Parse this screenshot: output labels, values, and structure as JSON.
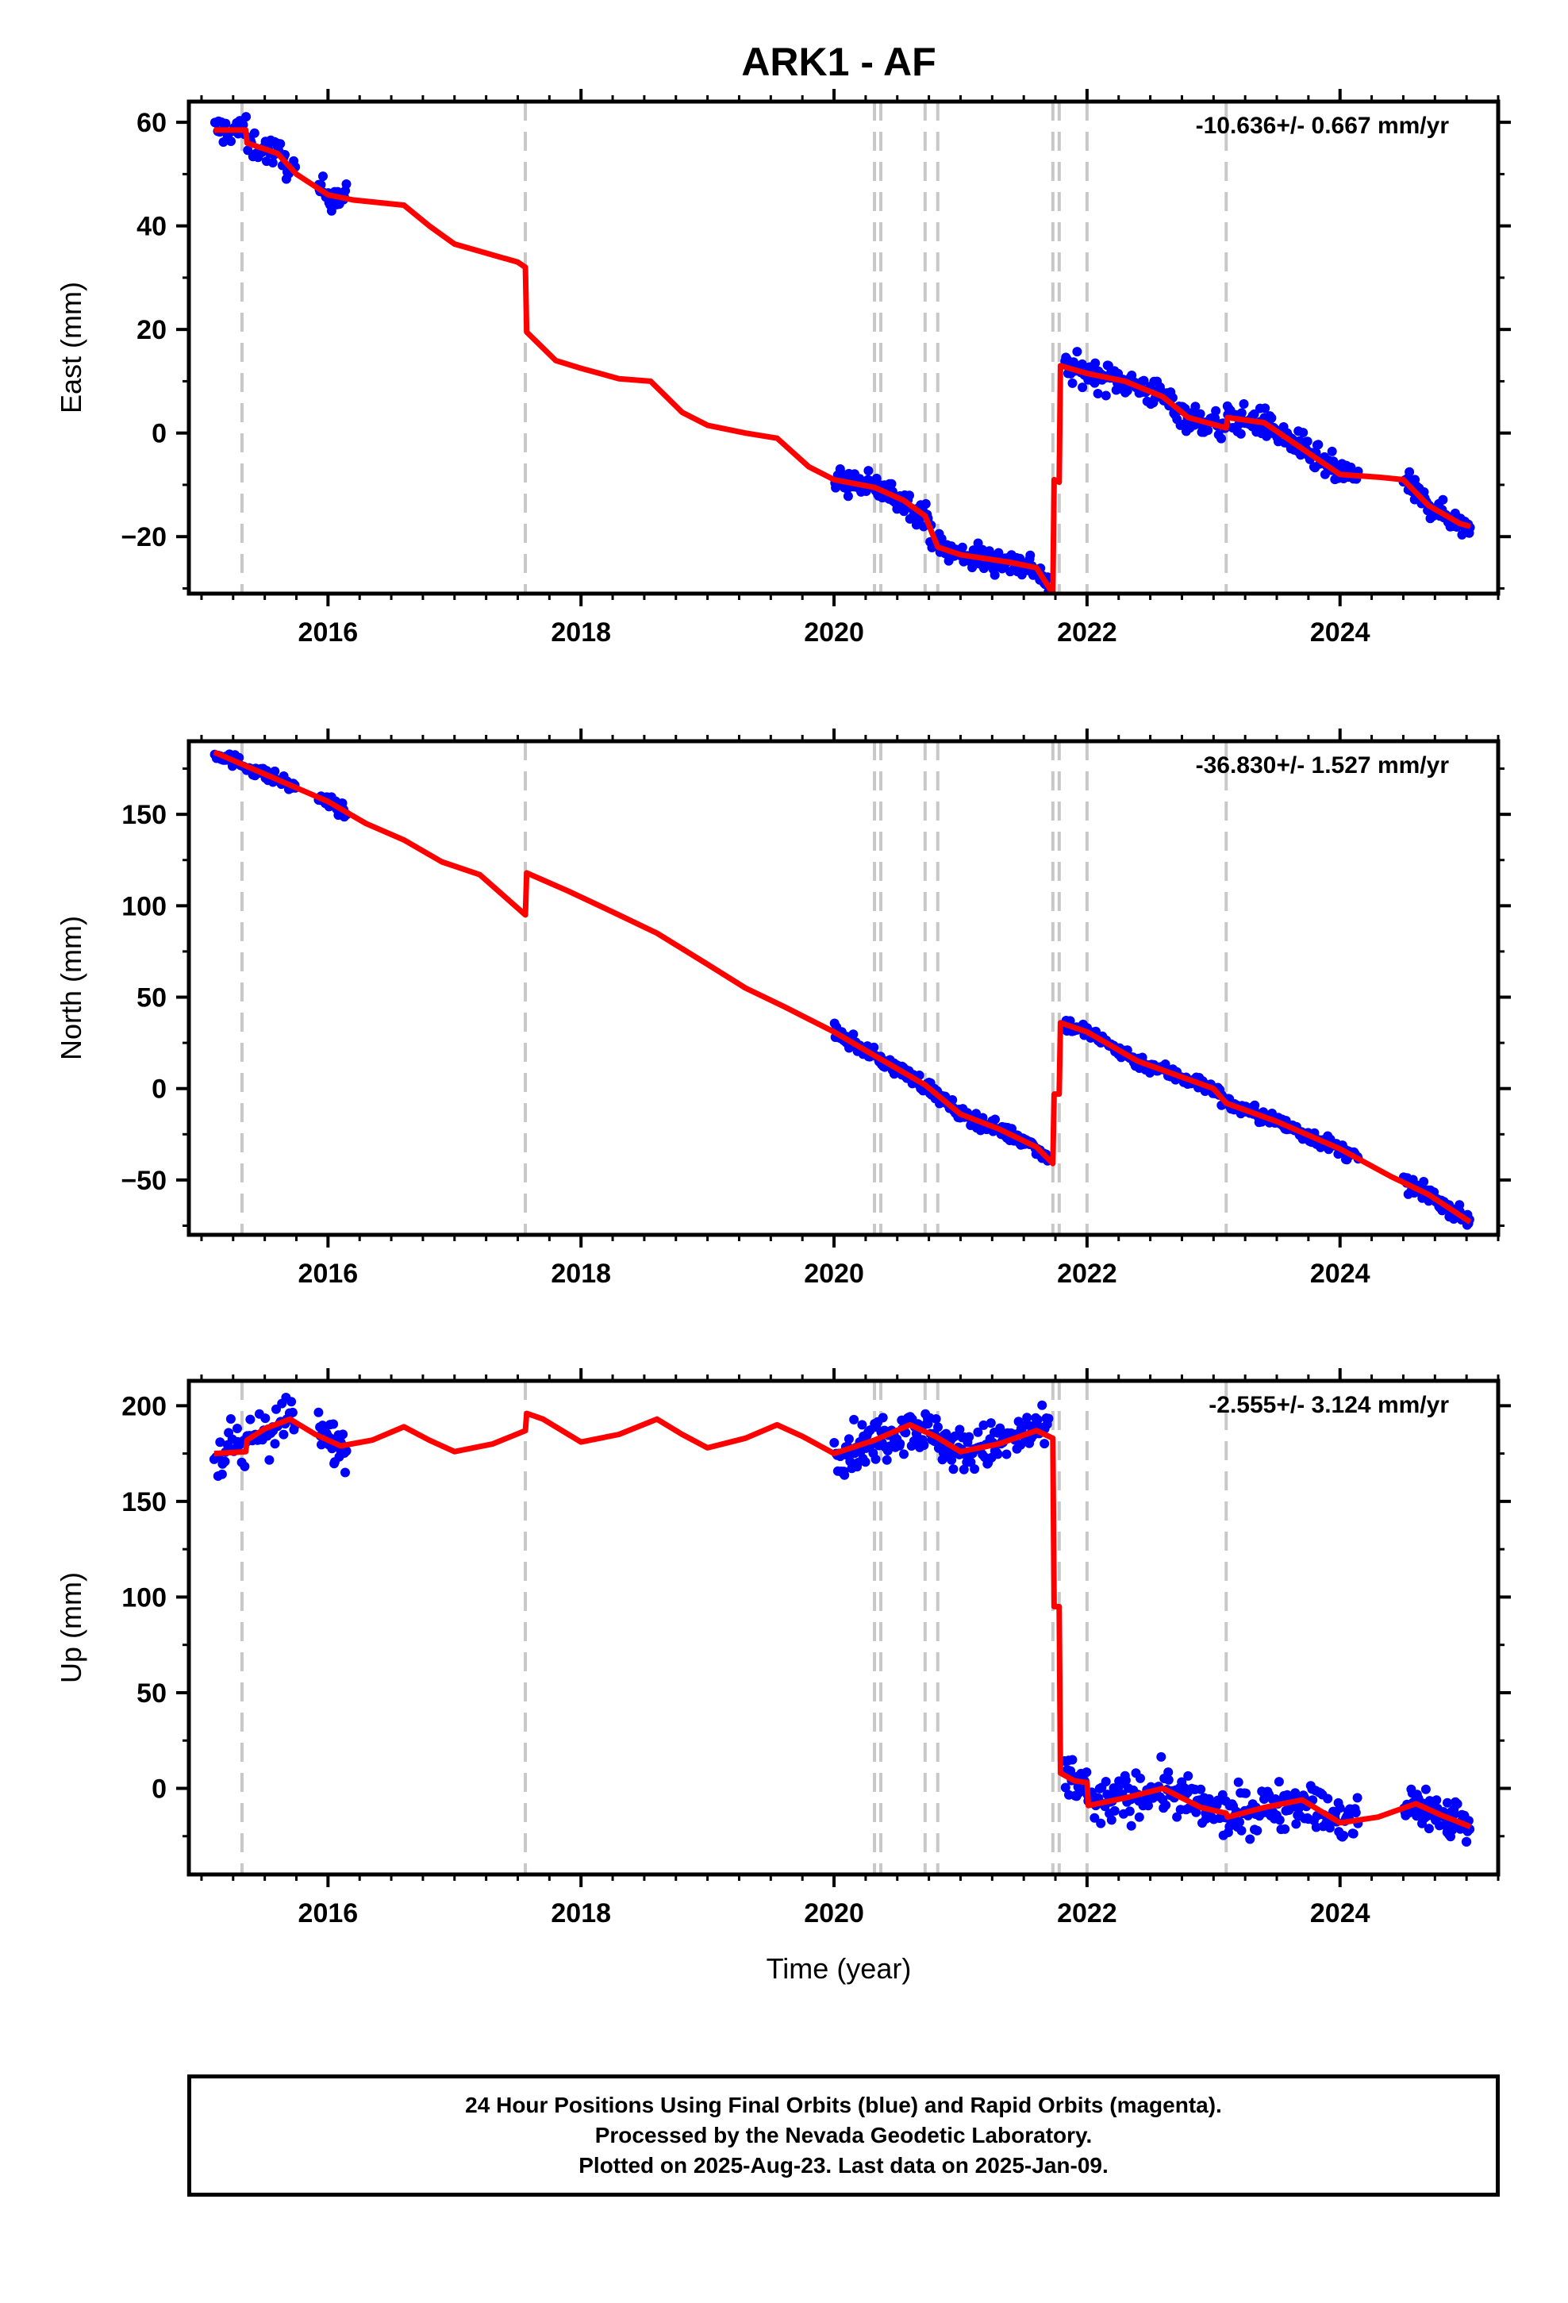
{
  "chart_data": {
    "type": "scatter",
    "title": "ARK1 - AF",
    "xlabel": "Time (year)",
    "xlim": [
      2014.9,
      2025.25
    ],
    "x_ticks": [
      2016,
      2018,
      2020,
      2022,
      2024
    ],
    "x_tick_labels": [
      "2016",
      "2018",
      "2020",
      "2022",
      "2024"
    ],
    "x_minor_step": 0.25,
    "grid": false,
    "marker_color": "#0000ff",
    "model_color": "#ff0000",
    "event_line_color": "#c8c8c8",
    "event_lines": [
      2015.32,
      2017.56,
      2020.32,
      2020.37,
      2020.72,
      2020.82,
      2021.73,
      2021.78,
      2022.0,
      2023.1
    ],
    "panels": [
      {
        "id": "east",
        "ylabel": "East (mm)",
        "ylim": [
          -31,
          64
        ],
        "y_ticks": [
          -20,
          0,
          20,
          40,
          60
        ],
        "y_tick_labels": [
          "−20",
          "0",
          "20",
          "40",
          "60"
        ],
        "rate": "-10.636+/- 0.667 mm/yr",
        "model": [
          [
            2015.1,
            58.5
          ],
          [
            2015.35,
            58.5
          ],
          [
            2015.36,
            56
          ],
          [
            2015.6,
            54
          ],
          [
            2015.75,
            50
          ],
          [
            2016.0,
            46
          ],
          [
            2016.2,
            45
          ],
          [
            2016.6,
            44
          ],
          [
            2016.8,
            40
          ],
          [
            2017.0,
            36.5
          ],
          [
            2017.5,
            33
          ],
          [
            2017.56,
            32
          ],
          [
            2017.57,
            19.5
          ],
          [
            2017.8,
            14
          ],
          [
            2018.0,
            12.5
          ],
          [
            2018.3,
            10.5
          ],
          [
            2018.55,
            10
          ],
          [
            2018.8,
            4
          ],
          [
            2019.0,
            1.5
          ],
          [
            2019.3,
            0
          ],
          [
            2019.55,
            -1
          ],
          [
            2019.8,
            -6.5
          ],
          [
            2020.0,
            -9
          ],
          [
            2020.32,
            -10.5
          ],
          [
            2020.55,
            -13
          ],
          [
            2020.72,
            -16
          ],
          [
            2020.82,
            -22
          ],
          [
            2021.0,
            -23.5
          ],
          [
            2021.4,
            -25
          ],
          [
            2021.6,
            -26
          ],
          [
            2021.73,
            -31
          ],
          [
            2021.74,
            -9
          ],
          [
            2021.78,
            -9.5
          ],
          [
            2021.79,
            13
          ],
          [
            2022.0,
            11.5
          ],
          [
            2022.3,
            10
          ],
          [
            2022.6,
            7
          ],
          [
            2022.8,
            3
          ],
          [
            2023.1,
            1
          ],
          [
            2023.11,
            3
          ],
          [
            2023.4,
            2
          ],
          [
            2023.7,
            -3
          ],
          [
            2024.0,
            -8
          ],
          [
            2024.3,
            -8.5
          ],
          [
            2024.5,
            -9
          ],
          [
            2024.7,
            -14
          ],
          [
            2024.95,
            -17.5
          ],
          [
            2025.03,
            -18
          ]
        ],
        "obs_segments": [
          {
            "x0": 2015.1,
            "x1": 2015.75,
            "n": 60,
            "scatter": 1.4
          },
          {
            "x0": 2015.92,
            "x1": 2016.15,
            "n": 28,
            "scatter": 1.3
          },
          {
            "x0": 2020.0,
            "x1": 2021.7,
            "n": 190,
            "scatter": 1.3
          },
          {
            "x0": 2021.82,
            "x1": 2024.15,
            "n": 260,
            "scatter": 1.4
          },
          {
            "x0": 2024.5,
            "x1": 2025.03,
            "n": 70,
            "scatter": 1.1
          }
        ]
      },
      {
        "id": "north",
        "ylabel": "North (mm)",
        "ylim": [
          -80,
          190
        ],
        "y_ticks": [
          -50,
          0,
          50,
          100,
          150
        ],
        "y_tick_labels": [
          "−50",
          "0",
          "50",
          "100",
          "150"
        ],
        "rate": "-36.830+/- 1.527 mm/yr",
        "model": [
          [
            2015.1,
            184
          ],
          [
            2015.5,
            172
          ],
          [
            2016.0,
            157
          ],
          [
            2016.3,
            145
          ],
          [
            2016.6,
            136
          ],
          [
            2016.9,
            124
          ],
          [
            2017.2,
            117
          ],
          [
            2017.56,
            95
          ],
          [
            2017.57,
            118
          ],
          [
            2017.9,
            108
          ],
          [
            2018.3,
            95
          ],
          [
            2018.6,
            85
          ],
          [
            2019.0,
            68
          ],
          [
            2019.3,
            55
          ],
          [
            2019.6,
            45
          ],
          [
            2020.0,
            31
          ],
          [
            2020.32,
            18
          ],
          [
            2020.72,
            2
          ],
          [
            2021.0,
            -14
          ],
          [
            2021.3,
            -22
          ],
          [
            2021.6,
            -32
          ],
          [
            2021.73,
            -41
          ],
          [
            2021.74,
            -3
          ],
          [
            2021.78,
            -3
          ],
          [
            2021.79,
            36
          ],
          [
            2022.0,
            31
          ],
          [
            2022.4,
            15
          ],
          [
            2023.0,
            0
          ],
          [
            2023.1,
            -8
          ],
          [
            2023.5,
            -18
          ],
          [
            2024.0,
            -33
          ],
          [
            2024.4,
            -48
          ],
          [
            2024.7,
            -58
          ],
          [
            2025.03,
            -73
          ]
        ],
        "obs_segments": [
          {
            "x0": 2015.1,
            "x1": 2015.75,
            "n": 60,
            "scatter": 1.8
          },
          {
            "x0": 2015.92,
            "x1": 2016.15,
            "n": 28,
            "scatter": 1.8
          },
          {
            "x0": 2020.0,
            "x1": 2021.7,
            "n": 190,
            "scatter": 2.0
          },
          {
            "x0": 2021.82,
            "x1": 2024.15,
            "n": 260,
            "scatter": 2.0
          },
          {
            "x0": 2024.5,
            "x1": 2025.03,
            "n": 70,
            "scatter": 2.0
          }
        ]
      },
      {
        "id": "up",
        "ylabel": "Up (mm)",
        "ylim": [
          -45,
          213
        ],
        "y_ticks": [
          0,
          50,
          100,
          150,
          200
        ],
        "y_tick_labels": [
          "0",
          "50",
          "100",
          "150",
          "200"
        ],
        "rate": "-2.555+/- 3.124 mm/yr",
        "model": [
          [
            2015.1,
            175
          ],
          [
            2015.35,
            176
          ],
          [
            2015.36,
            182
          ],
          [
            2015.5,
            188
          ],
          [
            2015.7,
            193
          ],
          [
            2015.9,
            185
          ],
          [
            2016.1,
            179
          ],
          [
            2016.35,
            182
          ],
          [
            2016.6,
            189
          ],
          [
            2016.8,
            182
          ],
          [
            2017.0,
            176
          ],
          [
            2017.3,
            180
          ],
          [
            2017.56,
            187
          ],
          [
            2017.57,
            196
          ],
          [
            2017.7,
            193
          ],
          [
            2018.0,
            181
          ],
          [
            2018.3,
            185
          ],
          [
            2018.6,
            193
          ],
          [
            2018.8,
            185
          ],
          [
            2019.0,
            178
          ],
          [
            2019.3,
            183
          ],
          [
            2019.55,
            190
          ],
          [
            2019.75,
            184
          ],
          [
            2020.0,
            175
          ],
          [
            2020.32,
            182
          ],
          [
            2020.6,
            190
          ],
          [
            2020.8,
            184
          ],
          [
            2021.0,
            176
          ],
          [
            2021.3,
            180
          ],
          [
            2021.6,
            187
          ],
          [
            2021.73,
            183
          ],
          [
            2021.74,
            95
          ],
          [
            2021.78,
            95
          ],
          [
            2021.79,
            8
          ],
          [
            2021.9,
            4
          ],
          [
            2022.0,
            3
          ],
          [
            2022.01,
            -9
          ],
          [
            2022.3,
            -5
          ],
          [
            2022.6,
            0
          ],
          [
            2022.9,
            -10
          ],
          [
            2023.1,
            -13
          ],
          [
            2023.11,
            -15
          ],
          [
            2023.4,
            -10
          ],
          [
            2023.7,
            -6
          ],
          [
            2024.0,
            -18
          ],
          [
            2024.3,
            -15
          ],
          [
            2024.6,
            -8
          ],
          [
            2024.8,
            -14
          ],
          [
            2025.03,
            -20
          ]
        ],
        "obs_segments": [
          {
            "x0": 2015.1,
            "x1": 2015.75,
            "n": 60,
            "scatter": 7
          },
          {
            "x0": 2015.92,
            "x1": 2016.15,
            "n": 28,
            "scatter": 6
          },
          {
            "x0": 2020.0,
            "x1": 2021.7,
            "n": 190,
            "scatter": 6
          },
          {
            "x0": 2021.82,
            "x1": 2024.15,
            "n": 260,
            "scatter": 6
          },
          {
            "x0": 2024.5,
            "x1": 2025.03,
            "n": 70,
            "scatter": 6
          }
        ]
      }
    ]
  },
  "footer": {
    "line1": "24 Hour Positions Using Final Orbits (blue) and Rapid Orbits (magenta).",
    "line2": "Processed by the Nevada Geodetic Laboratory.",
    "line3": "Plotted on 2025-Aug-23. Last data on 2025-Jan-09."
  }
}
